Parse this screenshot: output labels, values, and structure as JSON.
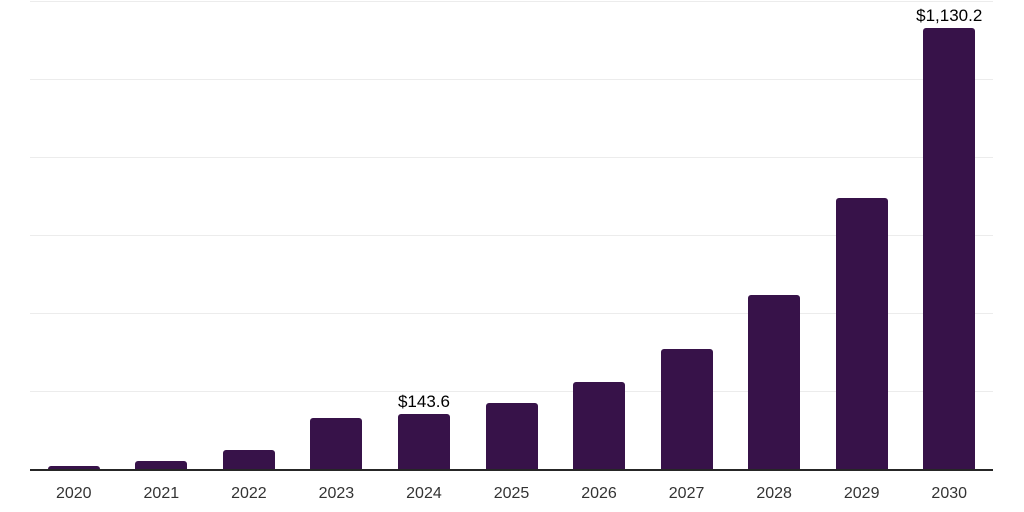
{
  "chart_data": {
    "type": "bar",
    "title": "",
    "xlabel": "",
    "ylabel": "",
    "categories": [
      "2020",
      "2021",
      "2022",
      "2023",
      "2024",
      "2025",
      "2026",
      "2027",
      "2028",
      "2029",
      "2030"
    ],
    "values": [
      10,
      23,
      50,
      133,
      143.6,
      171,
      225,
      310,
      448,
      696,
      1130.2
    ],
    "data_labels": [
      "",
      "",
      "",
      "",
      "$143.6",
      "",
      "",
      "",
      "",
      "",
      "$1,130.2"
    ],
    "ylim": [
      0,
      1200
    ],
    "gridline_step": 200,
    "grid": "horizontal-only",
    "y_tick_labels_visible": false,
    "legend": "none",
    "colors": {
      "bar": "#371249",
      "axis_line": "#262626",
      "gridline": "#ececec",
      "tick_label": "#333333",
      "data_label": "#000000",
      "background": "#ffffff"
    }
  }
}
